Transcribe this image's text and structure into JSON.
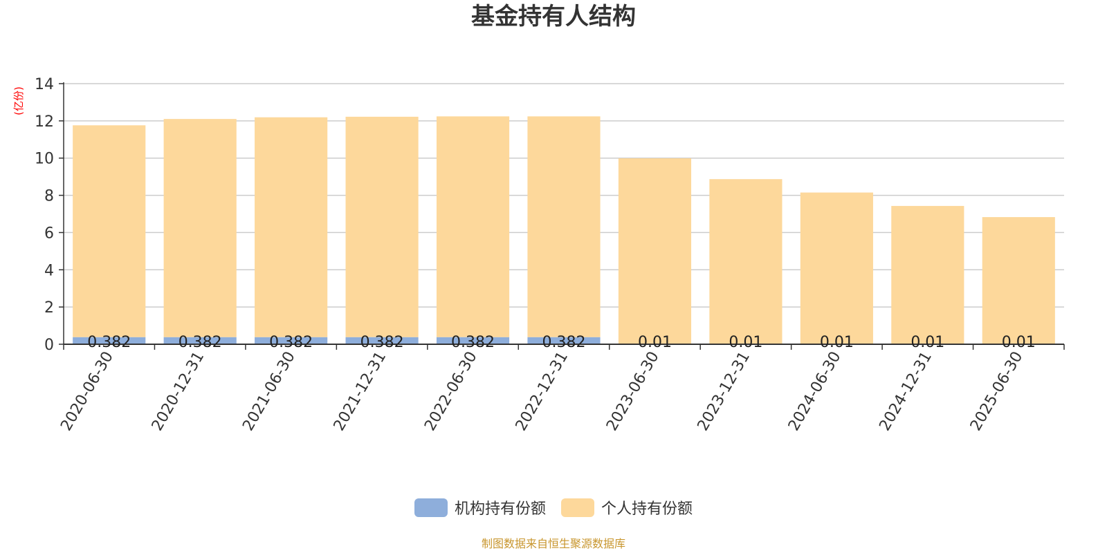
{
  "chart_data": {
    "type": "bar",
    "stacked": true,
    "title": "基金持有人结构",
    "ylabel": "(亿份)",
    "ylim": [
      0,
      14
    ],
    "yticks": [
      0,
      2,
      4,
      6,
      8,
      10,
      12,
      14
    ],
    "grid": true,
    "legend_position": "bottom",
    "categories": [
      "2020-06-30",
      "2020-12-31",
      "2021-06-30",
      "2021-12-31",
      "2022-06-30",
      "2022-12-31",
      "2023-06-30",
      "2023-12-31",
      "2024-06-30",
      "2024-12-31",
      "2025-06-30"
    ],
    "series": [
      {
        "name": "机构持有份额",
        "color": "#8eaedb",
        "values": [
          0.382,
          0.382,
          0.382,
          0.382,
          0.382,
          0.382,
          0.01,
          0.01,
          0.01,
          0.01,
          0.01
        ],
        "labels": [
          "0.382",
          "0.382",
          "0.382",
          "0.382",
          "0.382",
          "0.382",
          "0.01",
          "0.01",
          "0.01",
          "0.01",
          "0.01"
        ]
      },
      {
        "name": "个人持有份额",
        "color": "#fdd89b",
        "values": [
          11.38,
          11.72,
          11.81,
          11.84,
          11.86,
          11.86,
          9.98,
          8.86,
          8.14,
          7.42,
          6.82
        ]
      }
    ],
    "source": "制图数据来自恒生聚源数据库"
  }
}
